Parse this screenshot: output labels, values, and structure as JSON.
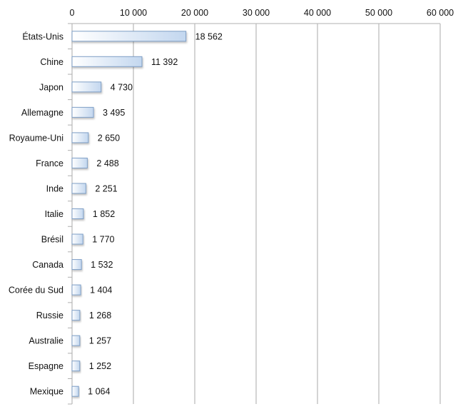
{
  "chart_data": {
    "type": "bar",
    "orientation": "horizontal",
    "title": "",
    "xlabel": "",
    "ylabel": "",
    "xlim": [
      0,
      60000
    ],
    "xticks": [
      0,
      10000,
      20000,
      30000,
      40000,
      50000,
      60000
    ],
    "xtick_labels": [
      "0",
      "10 000",
      "20 000",
      "30 000",
      "40 000",
      "50 000",
      "60 000"
    ],
    "categories": [
      "États-Unis",
      "Chine",
      "Japon",
      "Allemagne",
      "Royaume-Uni",
      "France",
      "Inde",
      "Italie",
      "Brésil",
      "Canada",
      "Corée du Sud",
      "Russie",
      "Australie",
      "Espagne",
      "Mexique"
    ],
    "values": [
      18562,
      11392,
      4730,
      3495,
      2650,
      2488,
      2251,
      1852,
      1770,
      1532,
      1404,
      1268,
      1257,
      1252,
      1064
    ],
    "value_labels": [
      "18 562",
      "11 392",
      "4 730",
      "3 495",
      "2 650",
      "2 488",
      "2 251",
      "1 852",
      "1 770",
      "1 532",
      "1 404",
      "1 268",
      "1 257",
      "1 252",
      "1 064"
    ],
    "grid": true,
    "bar_color": "#c9dcf1",
    "bar_border": "#7f9fc6"
  }
}
